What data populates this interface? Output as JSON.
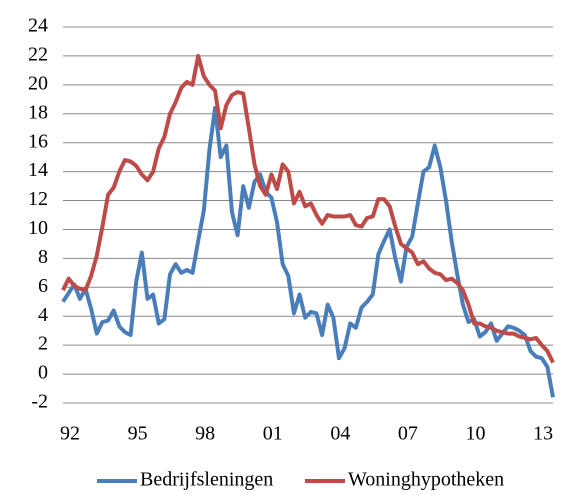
{
  "chart_data": {
    "type": "line",
    "categories": [
      "92",
      null,
      null,
      null,
      null,
      null,
      null,
      null,
      null,
      null,
      null,
      null,
      "95",
      null,
      null,
      null,
      null,
      null,
      null,
      null,
      null,
      null,
      null,
      null,
      "98",
      null,
      null,
      null,
      null,
      null,
      null,
      null,
      null,
      null,
      null,
      null,
      "01",
      null,
      null,
      null,
      null,
      null,
      null,
      null,
      null,
      null,
      null,
      null,
      "04",
      null,
      null,
      null,
      null,
      null,
      null,
      null,
      null,
      null,
      null,
      null,
      "07",
      null,
      null,
      null,
      null,
      null,
      null,
      null,
      null,
      null,
      null,
      null,
      "10",
      null,
      null,
      null,
      null,
      null,
      null,
      null,
      null,
      null,
      null,
      null,
      "13",
      null,
      null,
      null
    ],
    "series": [
      {
        "name": "Bedrijfsleningen",
        "color": "#4a7ebb",
        "values": [
          5,
          5.6,
          6.2,
          5.2,
          5.9,
          4.5,
          2.8,
          3.6,
          3.7,
          4.4,
          3.3,
          2.9,
          2.7,
          6.4,
          8.4,
          5.2,
          5.5,
          3.5,
          3.8,
          6.9,
          7.6,
          7.0,
          7.2,
          7.0,
          9.2,
          11.3,
          15.5,
          18.4,
          15.0,
          15.8,
          11.2,
          9.6,
          13.0,
          11.5,
          13.3,
          13.8,
          12.6,
          12.2,
          10.5,
          7.6,
          6.8,
          4.2,
          5.5,
          3.9,
          4.3,
          4.2,
          2.7,
          4.8,
          3.9,
          1.1,
          1.8,
          3.5,
          3.2,
          4.6,
          5.0,
          5.5,
          8.3,
          9.2,
          10.0,
          8.0,
          6.4,
          8.8,
          9.5,
          11.8,
          14.0,
          14.3,
          15.8,
          14.3,
          12.0,
          9.2,
          6.9,
          4.8,
          3.6,
          3.8,
          2.6,
          2.9,
          3.5,
          2.3,
          2.8,
          3.3,
          3.2,
          3.0,
          2.7,
          1.6,
          1.2,
          1.1,
          0.5,
          -1.6
        ]
      },
      {
        "name": "Woninghypotheken",
        "color": "#be4b48",
        "values": [
          5.8,
          6.6,
          6.1,
          5.9,
          5.8,
          6.8,
          8.2,
          10.2,
          12.4,
          12.9,
          14.0,
          14.8,
          14.7,
          14.4,
          13.8,
          13.4,
          14.0,
          15.6,
          16.4,
          18.0,
          18.8,
          19.8,
          20.2,
          20.0,
          22.0,
          20.6,
          20.0,
          19.6,
          17.0,
          18.6,
          19.3,
          19.5,
          19.4,
          17.0,
          14.5,
          13.0,
          12.4,
          13.8,
          12.8,
          14.5,
          14.0,
          11.8,
          12.6,
          11.6,
          11.8,
          11.0,
          10.4,
          11.0,
          10.9,
          10.9,
          10.9,
          11.0,
          10.3,
          10.2,
          10.8,
          10.9,
          12.1,
          12.1,
          11.6,
          10.2,
          9.0,
          8.7,
          8.4,
          7.6,
          7.8,
          7.3,
          7.0,
          6.9,
          6.5,
          6.6,
          6.3,
          5.8,
          4.8,
          3.5,
          3.5,
          3.3,
          3.2,
          3.0,
          2.9,
          2.8,
          2.8,
          2.6,
          2.5,
          2.4,
          2.5,
          2.0,
          1.6,
          0.8
        ]
      }
    ],
    "ylim": [
      -2,
      24
    ],
    "yticks": [
      -2,
      0,
      2,
      4,
      6,
      8,
      10,
      12,
      14,
      16,
      18,
      20,
      22,
      24
    ],
    "grid": true,
    "legend": "bottom"
  }
}
